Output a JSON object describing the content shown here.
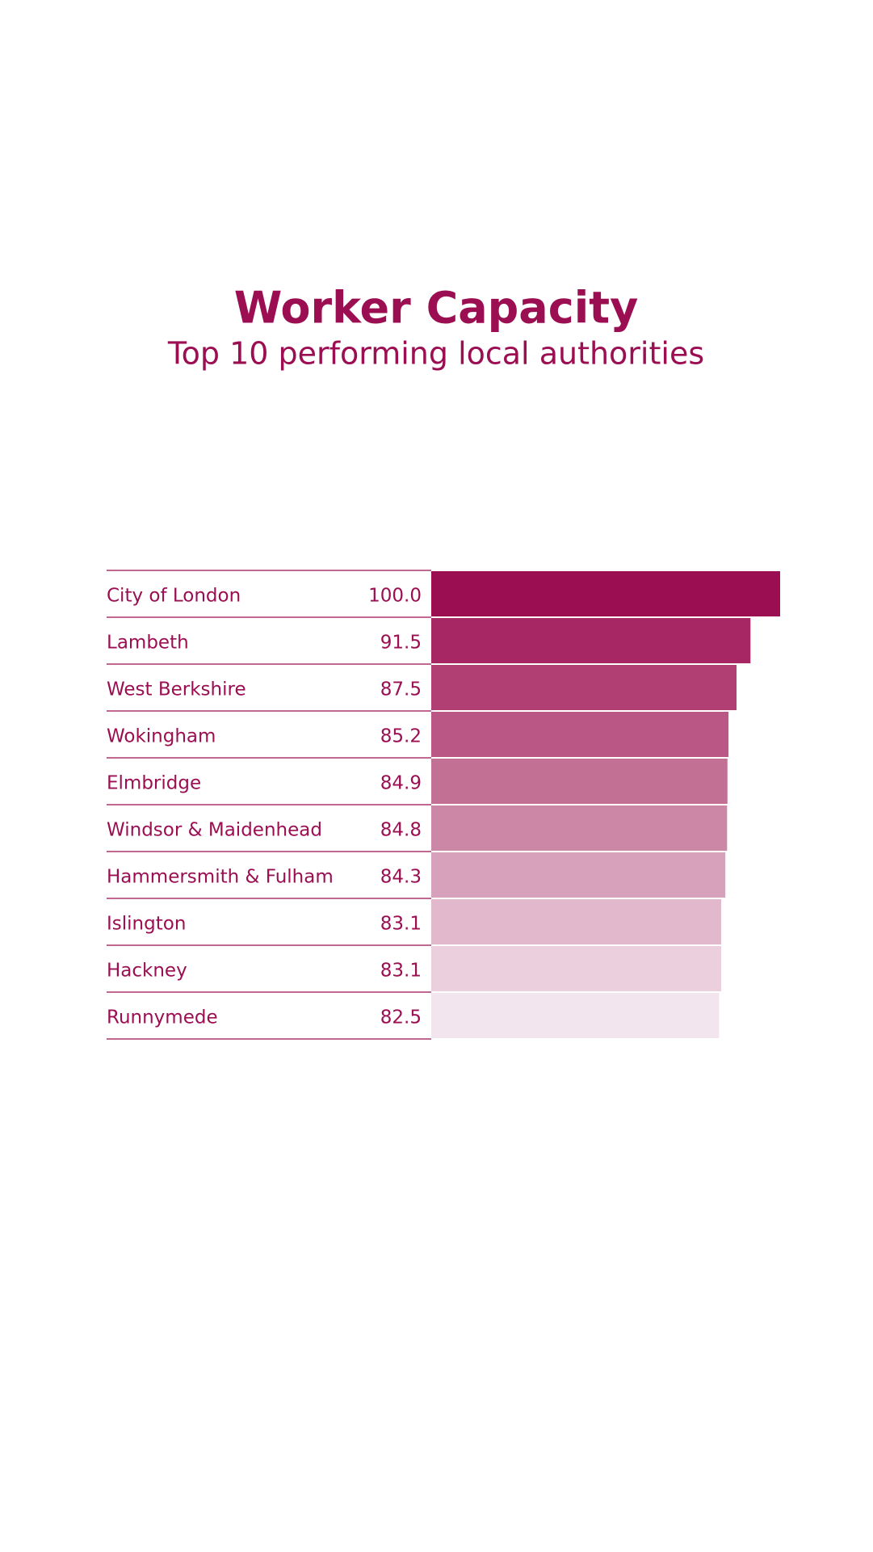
{
  "chart_data": {
    "type": "bar",
    "orientation": "horizontal",
    "title": "Worker Capacity",
    "subtitle": "Top 10 performing local authorities",
    "categories": [
      "City of London",
      "Lambeth",
      "West Berkshire",
      "Wokingham",
      "Elmbridge",
      "Windsor & Maidenhead",
      "Hammersmith & Fulham",
      "Islington",
      "Hackney",
      "Runnymede"
    ],
    "values": [
      100,
      91.5,
      87.5,
      85.2,
      84.9,
      84.8,
      84.3,
      83.1,
      83.1,
      82.5
    ],
    "value_labels": [
      "100.0",
      "91.5",
      "87.5",
      "85.2",
      "84.9",
      "84.8",
      "84.3",
      "83.1",
      "83.1",
      "82.5"
    ],
    "colors": [
      "#9b0f52",
      "#a72664",
      "#b23f74",
      "#ba5785",
      "#c27093",
      "#cc87a7",
      "#d7a0bb",
      "#e2b8cc",
      "#ebcfdc",
      "#f3e5ed"
    ]
  }
}
